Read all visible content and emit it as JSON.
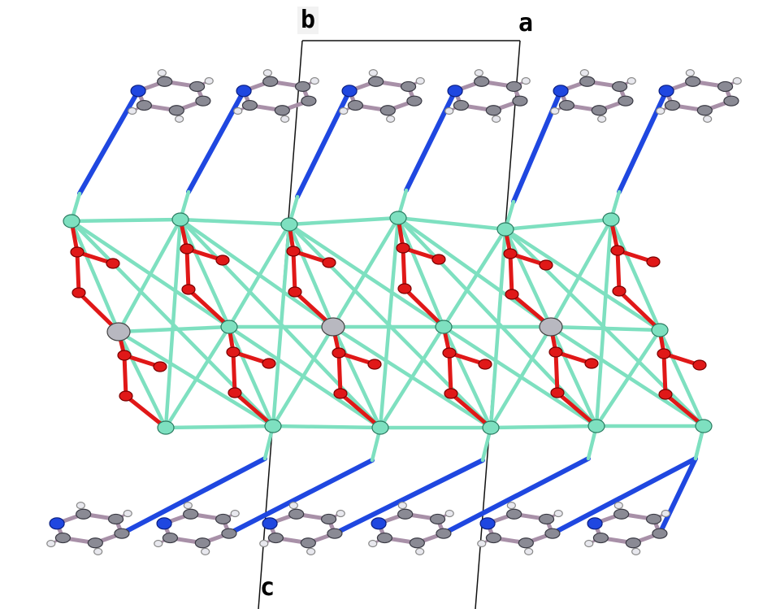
{
  "axes": {
    "a_label": "a",
    "b_label": "b",
    "c_label": "c"
  },
  "colors": {
    "metal": "#7ee0c0",
    "oxygen": "#e01818",
    "nitrogen": "#1f47e0",
    "carbon": "#8a8a94",
    "hydrogen": "#e8e8ee",
    "bond": "#a890a8",
    "cell": "#111111"
  }
}
